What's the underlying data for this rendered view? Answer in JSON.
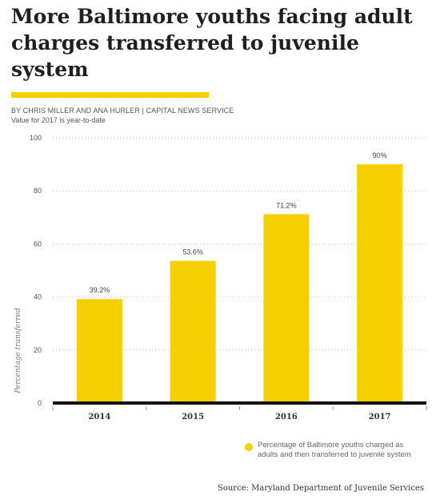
{
  "header": {
    "title": "More Baltimore youths facing adult charges transferred to juvenile system",
    "byline": "BY CHRIS MILLER AND ANA HURLER | CAPITAL NEWS SERVICE",
    "note": "Value for 2017 is year-to-date"
  },
  "colors": {
    "bar": "#f5cf00",
    "accent_rule": "#f5cf00",
    "baseline": "#111111",
    "grid": "#bbbbbb"
  },
  "chart_data": {
    "type": "bar",
    "categories": [
      "2014",
      "2015",
      "2016",
      "2017"
    ],
    "values": [
      39.2,
      53.6,
      71.2,
      90
    ],
    "data_labels": [
      "39.2%",
      "53.6%",
      "71.2%",
      "90%"
    ],
    "ylabel": "Percentage transferred",
    "ylim": [
      0,
      100
    ],
    "yticks": [
      0,
      20,
      40,
      60,
      80,
      100
    ],
    "grid": "dotted horizontal",
    "legend_position": "bottom-right",
    "series": [
      {
        "name": "Percentage of Baltimore youths charged as adults and then transferred to juvenile system",
        "values": [
          39.2,
          53.6,
          71.2,
          90
        ]
      }
    ]
  },
  "legend": {
    "label": "Percentage of Baltimore youths charged as adults and then transferred to juvenile system"
  },
  "footer": {
    "source": "Source: Maryland Department of Juvenile Services"
  }
}
